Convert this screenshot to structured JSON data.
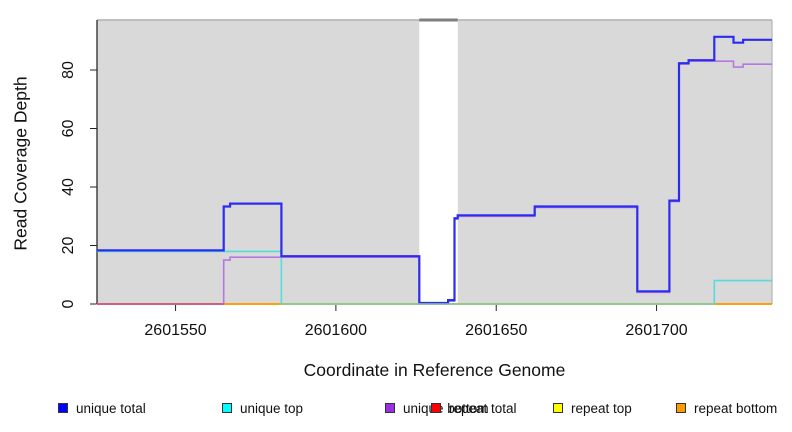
{
  "chart_data": {
    "type": "line",
    "subtype": "step-after",
    "title": "",
    "xlabel": "Coordinate in Reference Genome",
    "ylabel": "Read Coverage Depth",
    "xlim": [
      2601525.5,
      2601736
    ],
    "ylim": [
      0,
      97.1
    ],
    "x_ticks": [
      2601550,
      2601600,
      2601650,
      2601700
    ],
    "y_ticks": [
      0,
      20,
      40,
      60,
      80
    ],
    "grid": false,
    "legend_position": "bottom",
    "plot_background": "#d9d9d9",
    "box_top_color": "#b8b8b8",
    "box_right_color": "#b8b8b8",
    "box_left_color": "#2a2a2a",
    "box_bottom_color": "#2a2a2a",
    "gap_region": {
      "x_from": 2601626,
      "x_to": 2601638,
      "fill": "#ffffff",
      "top_marker_color": "#7f7f7f"
    },
    "series": [
      {
        "name": "repeat total",
        "color": "#e02020",
        "points": [
          [
            2601525.5,
            0
          ]
        ]
      },
      {
        "name": "repeat top",
        "color": "#e8e800",
        "points": [
          [
            2601525.5,
            0
          ]
        ]
      },
      {
        "name": "repeat bottom",
        "color": "#ff9900",
        "points": [
          [
            2601525.5,
            0
          ]
        ]
      },
      {
        "name": "unique top",
        "color": "#55dcdc",
        "points": [
          [
            2601525.5,
            18
          ],
          [
            2601583,
            0
          ],
          [
            2601718,
            8
          ]
        ]
      },
      {
        "name": "unique bottom",
        "color": "#b678e0",
        "points": [
          [
            2601525.5,
            0
          ],
          [
            2601565,
            15
          ],
          [
            2601567,
            16
          ],
          [
            2601626,
            0
          ],
          [
            2601635,
            1
          ],
          [
            2601637,
            29
          ],
          [
            2601638,
            30
          ],
          [
            2601662,
            33
          ],
          [
            2601694,
            4
          ],
          [
            2601704,
            35
          ],
          [
            2601707,
            82
          ],
          [
            2601710,
            83
          ],
          [
            2601724,
            81
          ],
          [
            2601727,
            82
          ]
        ]
      },
      {
        "name": "unique total",
        "color": "#2c2cf0",
        "points": [
          [
            2601525.5,
            18
          ],
          [
            2601565,
            33
          ],
          [
            2601567,
            34
          ],
          [
            2601583,
            16
          ],
          [
            2601626,
            0
          ],
          [
            2601635,
            1
          ],
          [
            2601637,
            29
          ],
          [
            2601638,
            30
          ],
          [
            2601662,
            33
          ],
          [
            2601694,
            4
          ],
          [
            2601704,
            35
          ],
          [
            2601707,
            82
          ],
          [
            2601710,
            83
          ],
          [
            2601718,
            91
          ],
          [
            2601724,
            89
          ],
          [
            2601727,
            90
          ]
        ]
      }
    ],
    "baseline_overlays": [
      {
        "x_from": 2601525.5,
        "x_to": 2601565,
        "color": "#c8547a"
      },
      {
        "x_from": 2601583,
        "x_to": 2601718,
        "color": "#90ca90"
      }
    ]
  },
  "legend": {
    "items": [
      {
        "label": "unique total",
        "color": "#0000ff"
      },
      {
        "label": "unique top",
        "color": "#00ffff"
      },
      {
        "label": "unique bottom",
        "color": "#9b2fe6"
      },
      {
        "label": "repeat total",
        "color": "#ff0000"
      },
      {
        "label": "repeat top",
        "color": "#ffff00"
      },
      {
        "label": "repeat bottom",
        "color": "#ff9900"
      }
    ]
  }
}
